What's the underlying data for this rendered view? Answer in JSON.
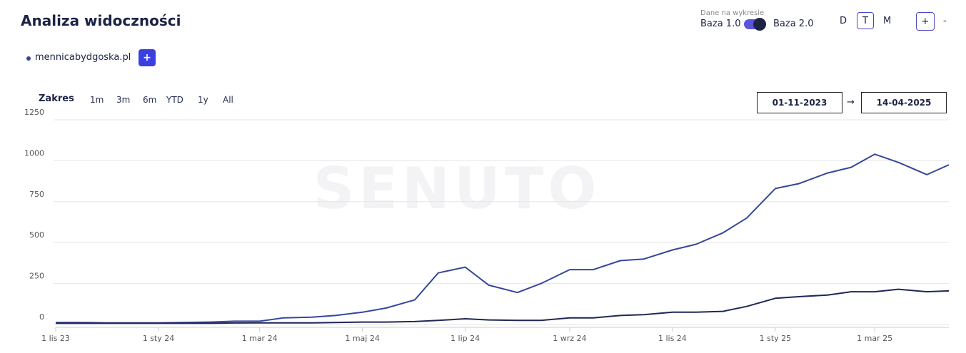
{
  "header": {
    "title": "Analiza widoczności",
    "data_caption": "Dane na wykresie",
    "base_left": "Baza 1.0",
    "base_right": "Baza 2.0",
    "granularity": [
      "D",
      "T",
      "M"
    ],
    "zoom_in": "+",
    "zoom_out": "-"
  },
  "domain_add": "+",
  "range": {
    "label": "Zakres",
    "buttons": [
      "1m",
      "3m",
      "6m",
      "YTD",
      "1y",
      "All"
    ],
    "from": "01-11-2023",
    "arrow": "→",
    "to": "14-04-2025"
  },
  "chart_data": {
    "type": "line",
    "watermark": "SENUTO",
    "x": [
      "1 lis 23",
      "15 lis 23",
      "1 gru 23",
      "15 gru 23",
      "1 sty 24",
      "15 sty 24",
      "1 lut 24",
      "15 lut 24",
      "1 mar 24",
      "15 mar 24",
      "1 kwi 24",
      "15 kwi 24",
      "1 maj 24",
      "15 maj 24",
      "1 cze 24",
      "15 cze 24",
      "1 lip 24",
      "15 lip 24",
      "1 sie 24",
      "15 sie 24",
      "1 wrz 24",
      "15 wrz 24",
      "1 paź 24",
      "15 paź 24",
      "1 lis 24",
      "15 lis 24",
      "1 gru 24",
      "15 gru 24",
      "1 sty 25",
      "15 sty 25",
      "1 lut 25",
      "15 lut 25",
      "1 mar 25",
      "15 mar 25",
      "1 kwi 25",
      "14 kwi 25"
    ],
    "series": [
      {
        "name": "mennicabydgoska.pl",
        "color": "#36479a",
        "values": [
          12,
          12,
          10,
          10,
          10,
          12,
          15,
          20,
          20,
          40,
          45,
          55,
          75,
          100,
          150,
          315,
          350,
          240,
          195,
          250,
          335,
          335,
          390,
          400,
          455,
          490,
          560,
          650,
          830,
          860,
          925,
          960,
          1040,
          990,
          915,
          975
        ]
      },
      {
        "color": "#1f2757",
        "values": [
          8,
          8,
          8,
          8,
          8,
          8,
          8,
          9,
          10,
          10,
          10,
          12,
          15,
          15,
          18,
          25,
          35,
          28,
          25,
          25,
          40,
          40,
          55,
          60,
          75,
          75,
          80,
          110,
          160,
          170,
          180,
          200,
          200,
          215,
          200,
          205
        ]
      }
    ],
    "xticks": [
      "1 lis 23",
      "1 sty 24",
      "1 mar 24",
      "1 maj 24",
      "1 lip 24",
      "1 wrz 24",
      "1 lis 24",
      "1 sty 25",
      "1 mar 25"
    ],
    "ylim": [
      0,
      1250
    ],
    "yticks": [
      0,
      250,
      500,
      750,
      1000,
      1250
    ],
    "grid": true
  }
}
